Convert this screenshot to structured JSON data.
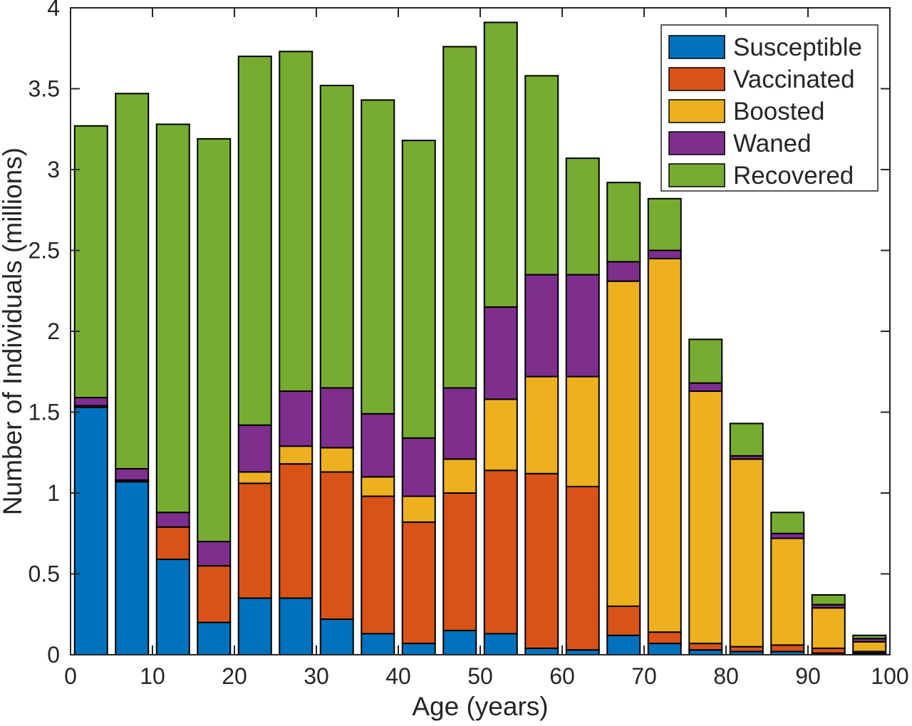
{
  "chart_data": {
    "type": "bar",
    "stacked": true,
    "title": "",
    "xlabel": "Age (years)",
    "ylabel": "Number of Individuals (millions)",
    "xlim": [
      0,
      100
    ],
    "ylim": [
      0,
      4
    ],
    "x_ticks": [
      0,
      10,
      20,
      30,
      40,
      50,
      60,
      70,
      80,
      90,
      100
    ],
    "y_ticks": [
      0,
      0.5,
      1,
      1.5,
      2,
      2.5,
      3,
      3.5,
      4
    ],
    "grid": false,
    "legend_position": "top-right-inside",
    "bin_width_years": 5,
    "categories": [
      "0-5",
      "5-10",
      "10-15",
      "15-20",
      "20-25",
      "25-30",
      "30-35",
      "35-40",
      "40-45",
      "45-50",
      "50-55",
      "55-60",
      "60-65",
      "65-70",
      "70-75",
      "75-80",
      "80-85",
      "85-90",
      "90-95",
      "95-100"
    ],
    "bin_centers": [
      2.5,
      7.5,
      12.5,
      17.5,
      22.5,
      27.5,
      32.5,
      37.5,
      42.5,
      47.5,
      52.5,
      57.5,
      62.5,
      67.5,
      72.5,
      77.5,
      82.5,
      87.5,
      92.5,
      97.5
    ],
    "series": [
      {
        "name": "Susceptible",
        "color": "#0072BD",
        "values": [
          1.53,
          1.07,
          0.59,
          0.2,
          0.35,
          0.35,
          0.22,
          0.13,
          0.07,
          0.15,
          0.13,
          0.04,
          0.03,
          0.12,
          0.07,
          0.03,
          0.02,
          0.02,
          0.01,
          0.01
        ]
      },
      {
        "name": "Vaccinated",
        "color": "#D95319",
        "values": [
          0.01,
          0.01,
          0.2,
          0.35,
          0.71,
          0.83,
          0.91,
          0.85,
          0.75,
          0.85,
          1.01,
          1.08,
          1.01,
          0.18,
          0.07,
          0.04,
          0.03,
          0.04,
          0.03,
          0.01
        ]
      },
      {
        "name": "Boosted",
        "color": "#EDB120",
        "values": [
          0,
          0,
          0,
          0,
          0.07,
          0.11,
          0.15,
          0.12,
          0.16,
          0.21,
          0.44,
          0.6,
          0.68,
          2.01,
          2.31,
          1.56,
          1.16,
          0.66,
          0.25,
          0.06
        ]
      },
      {
        "name": "Waned",
        "color": "#7E2F8E",
        "values": [
          0.05,
          0.07,
          0.09,
          0.15,
          0.29,
          0.34,
          0.37,
          0.39,
          0.36,
          0.44,
          0.57,
          0.63,
          0.63,
          0.12,
          0.05,
          0.05,
          0.02,
          0.03,
          0.02,
          0.02
        ]
      },
      {
        "name": "Recovered",
        "color": "#77AC30",
        "values": [
          1.68,
          2.32,
          2.4,
          2.49,
          2.28,
          2.1,
          1.87,
          1.94,
          1.84,
          2.11,
          1.76,
          1.23,
          0.72,
          0.49,
          0.32,
          0.27,
          0.2,
          0.13,
          0.06,
          0.02
        ]
      }
    ],
    "bar_totals": [
      3.27,
      3.47,
      3.28,
      3.19,
      3.7,
      3.73,
      3.52,
      3.43,
      3.18,
      3.76,
      3.91,
      3.58,
      3.07,
      2.92,
      2.82,
      1.95,
      1.43,
      0.88,
      0.37,
      0.12
    ]
  },
  "axis_color": "#262626",
  "bar_edge_color": "#000000",
  "background_color": "#ffffff"
}
